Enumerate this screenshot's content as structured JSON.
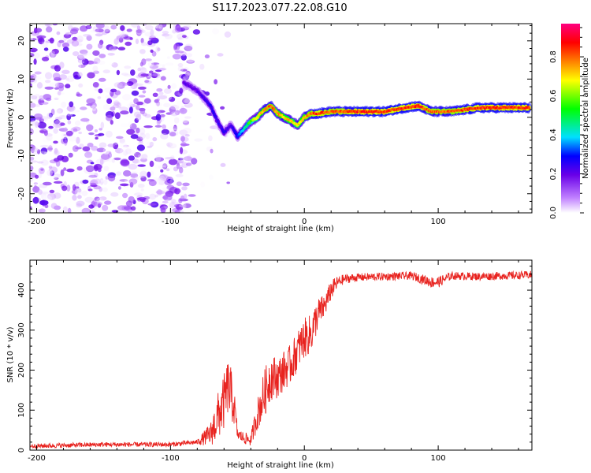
{
  "title": "S117.2023.077.22.08.G10",
  "colors": {
    "snr_line": "#e8231f",
    "background": "#ffffff",
    "axis": "#000000"
  },
  "chart_data": [
    {
      "type": "heatmap",
      "xlabel": "Height of straight line (km)",
      "ylabel": "Frequency (Hz)",
      "xlim": [
        -205,
        170
      ],
      "ylim": [
        -25,
        24.5
      ],
      "x_ticks": [
        -200,
        -100,
        0,
        100
      ],
      "y_ticks": [
        20,
        10,
        0,
        -10,
        -20
      ],
      "colorbar": {
        "label": "Normalized spectral amplitude",
        "range": [
          0,
          0.97
        ],
        "ticks": [
          0.0,
          0.2,
          0.4,
          0.6,
          0.8
        ],
        "colormap": [
          "#ffffff",
          "#c080ff",
          "#6a00e8",
          "#0000ff",
          "#00e0ff",
          "#00ff00",
          "#ffff00",
          "#ff8000",
          "#ff0000",
          "#ff0080"
        ]
      },
      "ridge": {
        "x": [
          -90,
          -80,
          -70,
          -65,
          -60,
          -55,
          -50,
          -45,
          -40,
          -35,
          -30,
          -25,
          -20,
          -15,
          -10,
          -5,
          0,
          5,
          10,
          20,
          40,
          60,
          75,
          85,
          95,
          110,
          130,
          150,
          168
        ],
        "frequency": [
          9,
          7,
          3,
          -1,
          -4,
          -2,
          -5,
          -3,
          -1,
          0,
          2,
          3,
          1,
          0,
          -1,
          -2,
          0,
          1,
          1,
          1.5,
          1.5,
          1.5,
          2.5,
          3,
          1.5,
          1.5,
          2.5,
          2.5,
          2.5
        ],
        "amplitude": [
          0.25,
          0.25,
          0.3,
          0.3,
          0.3,
          0.25,
          0.35,
          0.5,
          0.6,
          0.7,
          0.8,
          0.85,
          0.8,
          0.75,
          0.75,
          0.7,
          0.8,
          0.85,
          0.9,
          0.85,
          0.9,
          0.9,
          0.9,
          0.9,
          0.85,
          0.85,
          0.9,
          0.9,
          0.9
        ]
      },
      "noise_region": {
        "x": [
          -205,
          -85
        ],
        "frequency": [
          -25,
          24.5
        ],
        "amplitude": [
          0,
          0.25
        ]
      }
    },
    {
      "type": "line",
      "xlabel": "Height of straight line (km)",
      "ylabel": "SNR (10 * v/v)",
      "xlim": [
        -205,
        170
      ],
      "ylim": [
        0,
        475
      ],
      "x_ticks": [
        -200,
        -100,
        0,
        100
      ],
      "y_ticks": [
        0,
        100,
        200,
        300,
        400
      ],
      "series": [
        {
          "x": [
            -205,
            -150,
            -100,
            -80,
            -70,
            -65,
            -60,
            -57,
            -55,
            -52,
            -50,
            -45,
            -40,
            -35,
            -30,
            -25,
            -20,
            -15,
            -10,
            -5,
            0,
            5,
            10,
            15,
            20,
            25,
            30,
            40,
            60,
            80,
            95,
            100,
            110,
            130,
            150,
            170
          ],
          "values": [
            10,
            14,
            14,
            20,
            40,
            80,
            120,
            160,
            140,
            100,
            40,
            30,
            25,
            90,
            140,
            185,
            180,
            200,
            215,
            250,
            280,
            290,
            340,
            360,
            400,
            420,
            428,
            432,
            434,
            436,
            420,
            420,
            436,
            434,
            436,
            438
          ],
          "noise": [
            6,
            6,
            6,
            6,
            30,
            60,
            70,
            70,
            70,
            40,
            15,
            15,
            15,
            40,
            60,
            60,
            50,
            50,
            50,
            50,
            50,
            50,
            40,
            30,
            25,
            15,
            12,
            10,
            10,
            10,
            14,
            14,
            10,
            10,
            10,
            10
          ]
        }
      ]
    }
  ]
}
